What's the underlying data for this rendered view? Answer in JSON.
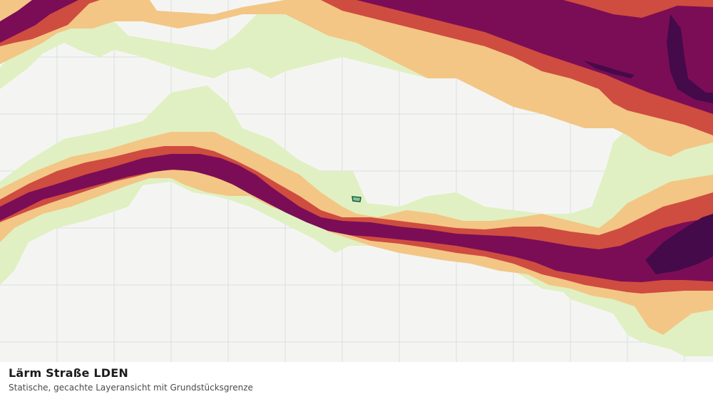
{
  "caption": {
    "title": "Lärm Straße LDEN",
    "subtitle": "Statische, gecachte Layeransicht mit Grundstücksgrenze"
  },
  "map": {
    "background_color": "#f4f5f3",
    "grid_color": "#dcdedb",
    "noise_classes": [
      {
        "name": "class-1",
        "color": "#e0f0c2"
      },
      {
        "name": "class-2",
        "color": "#f3c685"
      },
      {
        "name": "class-3",
        "color": "#cf4c40"
      },
      {
        "name": "class-4",
        "color": "#7b0d56"
      },
      {
        "name": "class-5",
        "color": "#450a4a"
      }
    ],
    "parcel_outline": {
      "fill": "#7fc79a",
      "stroke": "#1f5c3a"
    }
  }
}
